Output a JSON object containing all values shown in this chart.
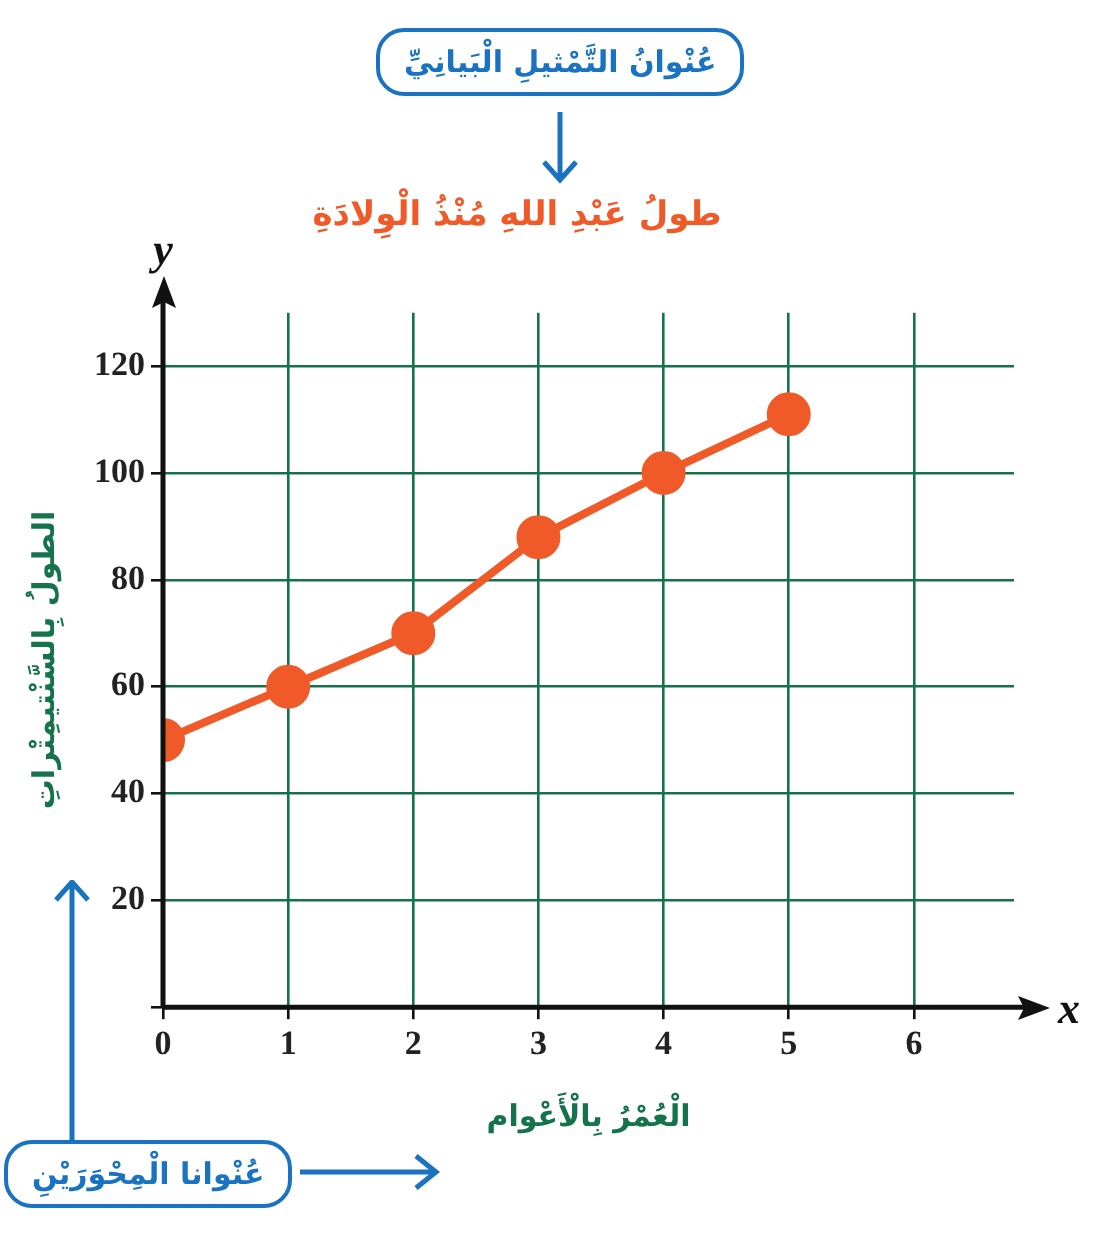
{
  "chart_data": {
    "type": "line",
    "title": "طولُ عَبْدِ اللهِ مُنْذُ الْوِلادَةِ",
    "xlabel": "الْعُمْرُ بِالْأَعْوام",
    "ylabel": "الطولُ بِالسَّنْتيمِتْراتِ",
    "annotations": [
      "عُنْوانُ التَّمْثيلِ الْبَيانِيِّ",
      "عُنْوانا الْمِحْوَرَيْنِ",
      "x",
      "y"
    ],
    "x": [
      0,
      1,
      2,
      3,
      4,
      5
    ],
    "series": [
      {
        "color": "#f05a28",
        "values": [
          50,
          60,
          70,
          88,
          100,
          111
        ]
      }
    ],
    "xlim": [
      0,
      6.8
    ],
    "ylim": [
      0,
      130
    ],
    "xticks": [
      0,
      1,
      2,
      3,
      4,
      5,
      6
    ],
    "yticks": [
      {
        "value": 0,
        "label": null
      },
      20,
      40,
      60,
      80,
      100,
      120
    ],
    "grid": true,
    "legend": false,
    "marker": "circle",
    "line_style": "solid"
  }
}
